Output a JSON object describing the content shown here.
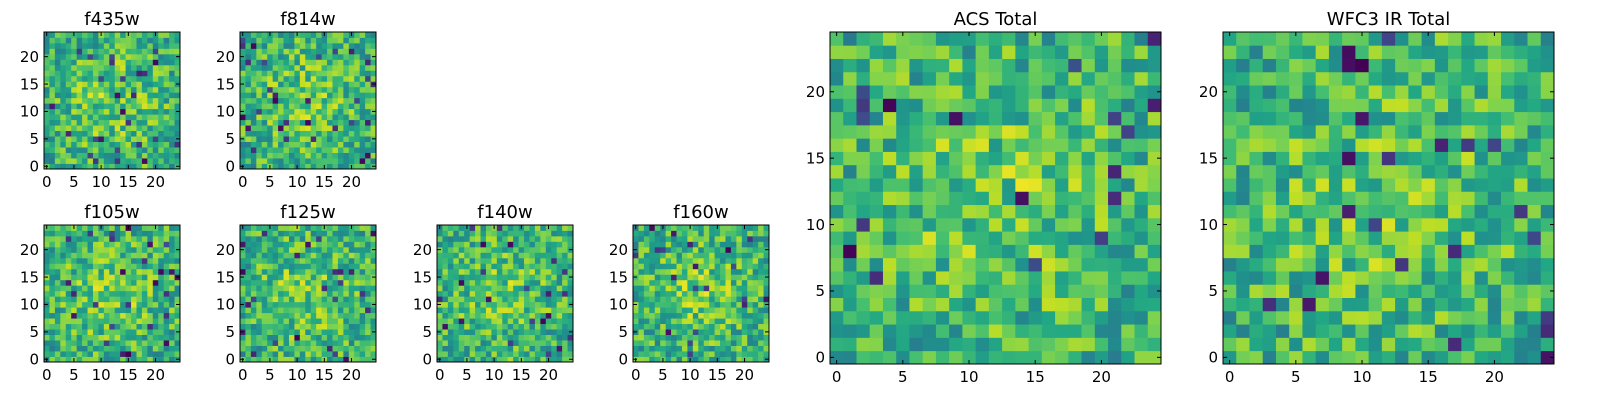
{
  "figure": {
    "description": "Grid of 2D pixel heatmaps of imaging stamps per filter"
  },
  "chart_data": [
    {
      "type": "heatmap",
      "id": "f435w",
      "title": "f435w",
      "grid": [
        25,
        25
      ],
      "xlim": [
        0,
        24
      ],
      "ylim": [
        0,
        24
      ],
      "xticks": [
        0,
        5,
        10,
        15,
        20
      ],
      "yticks": [
        0,
        5,
        10,
        15,
        20
      ],
      "colormap": "viridis",
      "seed": 435
    },
    {
      "type": "heatmap",
      "id": "f814w",
      "title": "f814w",
      "grid": [
        25,
        25
      ],
      "xlim": [
        0,
        24
      ],
      "ylim": [
        0,
        24
      ],
      "xticks": [
        0,
        5,
        10,
        15,
        20
      ],
      "yticks": [
        0,
        5,
        10,
        15,
        20
      ],
      "colormap": "viridis",
      "seed": 814
    },
    {
      "type": "heatmap",
      "id": "f105w",
      "title": "f105w",
      "grid": [
        25,
        25
      ],
      "xlim": [
        0,
        24
      ],
      "ylim": [
        0,
        24
      ],
      "xticks": [
        0,
        5,
        10,
        15,
        20
      ],
      "yticks": [
        0,
        5,
        10,
        15,
        20
      ],
      "colormap": "viridis",
      "seed": 105
    },
    {
      "type": "heatmap",
      "id": "f125w",
      "title": "f125w",
      "grid": [
        25,
        25
      ],
      "xlim": [
        0,
        24
      ],
      "ylim": [
        0,
        24
      ],
      "xticks": [
        0,
        5,
        10,
        15,
        20
      ],
      "yticks": [
        0,
        5,
        10,
        15,
        20
      ],
      "colormap": "viridis",
      "seed": 125
    },
    {
      "type": "heatmap",
      "id": "f140w",
      "title": "f140w",
      "grid": [
        25,
        25
      ],
      "xlim": [
        0,
        24
      ],
      "ylim": [
        0,
        24
      ],
      "xticks": [
        0,
        5,
        10,
        15,
        20
      ],
      "yticks": [
        0,
        5,
        10,
        15,
        20
      ],
      "colormap": "viridis",
      "seed": 140
    },
    {
      "type": "heatmap",
      "id": "f160w",
      "title": "f160w",
      "grid": [
        25,
        25
      ],
      "xlim": [
        0,
        24
      ],
      "ylim": [
        0,
        24
      ],
      "xticks": [
        0,
        5,
        10,
        15,
        20
      ],
      "yticks": [
        0,
        5,
        10,
        15,
        20
      ],
      "colormap": "viridis",
      "seed": 160
    },
    {
      "type": "heatmap",
      "id": "acs-total",
      "title": "ACS Total",
      "grid": [
        25,
        25
      ],
      "xlim": [
        0,
        24
      ],
      "ylim": [
        0,
        24
      ],
      "xticks": [
        0,
        5,
        10,
        15,
        20
      ],
      "yticks": [
        0,
        5,
        10,
        15,
        20
      ],
      "colormap": "viridis",
      "seed": 1001
    },
    {
      "type": "heatmap",
      "id": "wfc3-ir-total",
      "title": "WFC3 IR Total",
      "grid": [
        25,
        25
      ],
      "xlim": [
        0,
        24
      ],
      "ylim": [
        0,
        24
      ],
      "xticks": [
        0,
        5,
        10,
        15,
        20
      ],
      "yticks": [
        0,
        5,
        10,
        15,
        20
      ],
      "colormap": "viridis",
      "seed": 2002
    }
  ]
}
